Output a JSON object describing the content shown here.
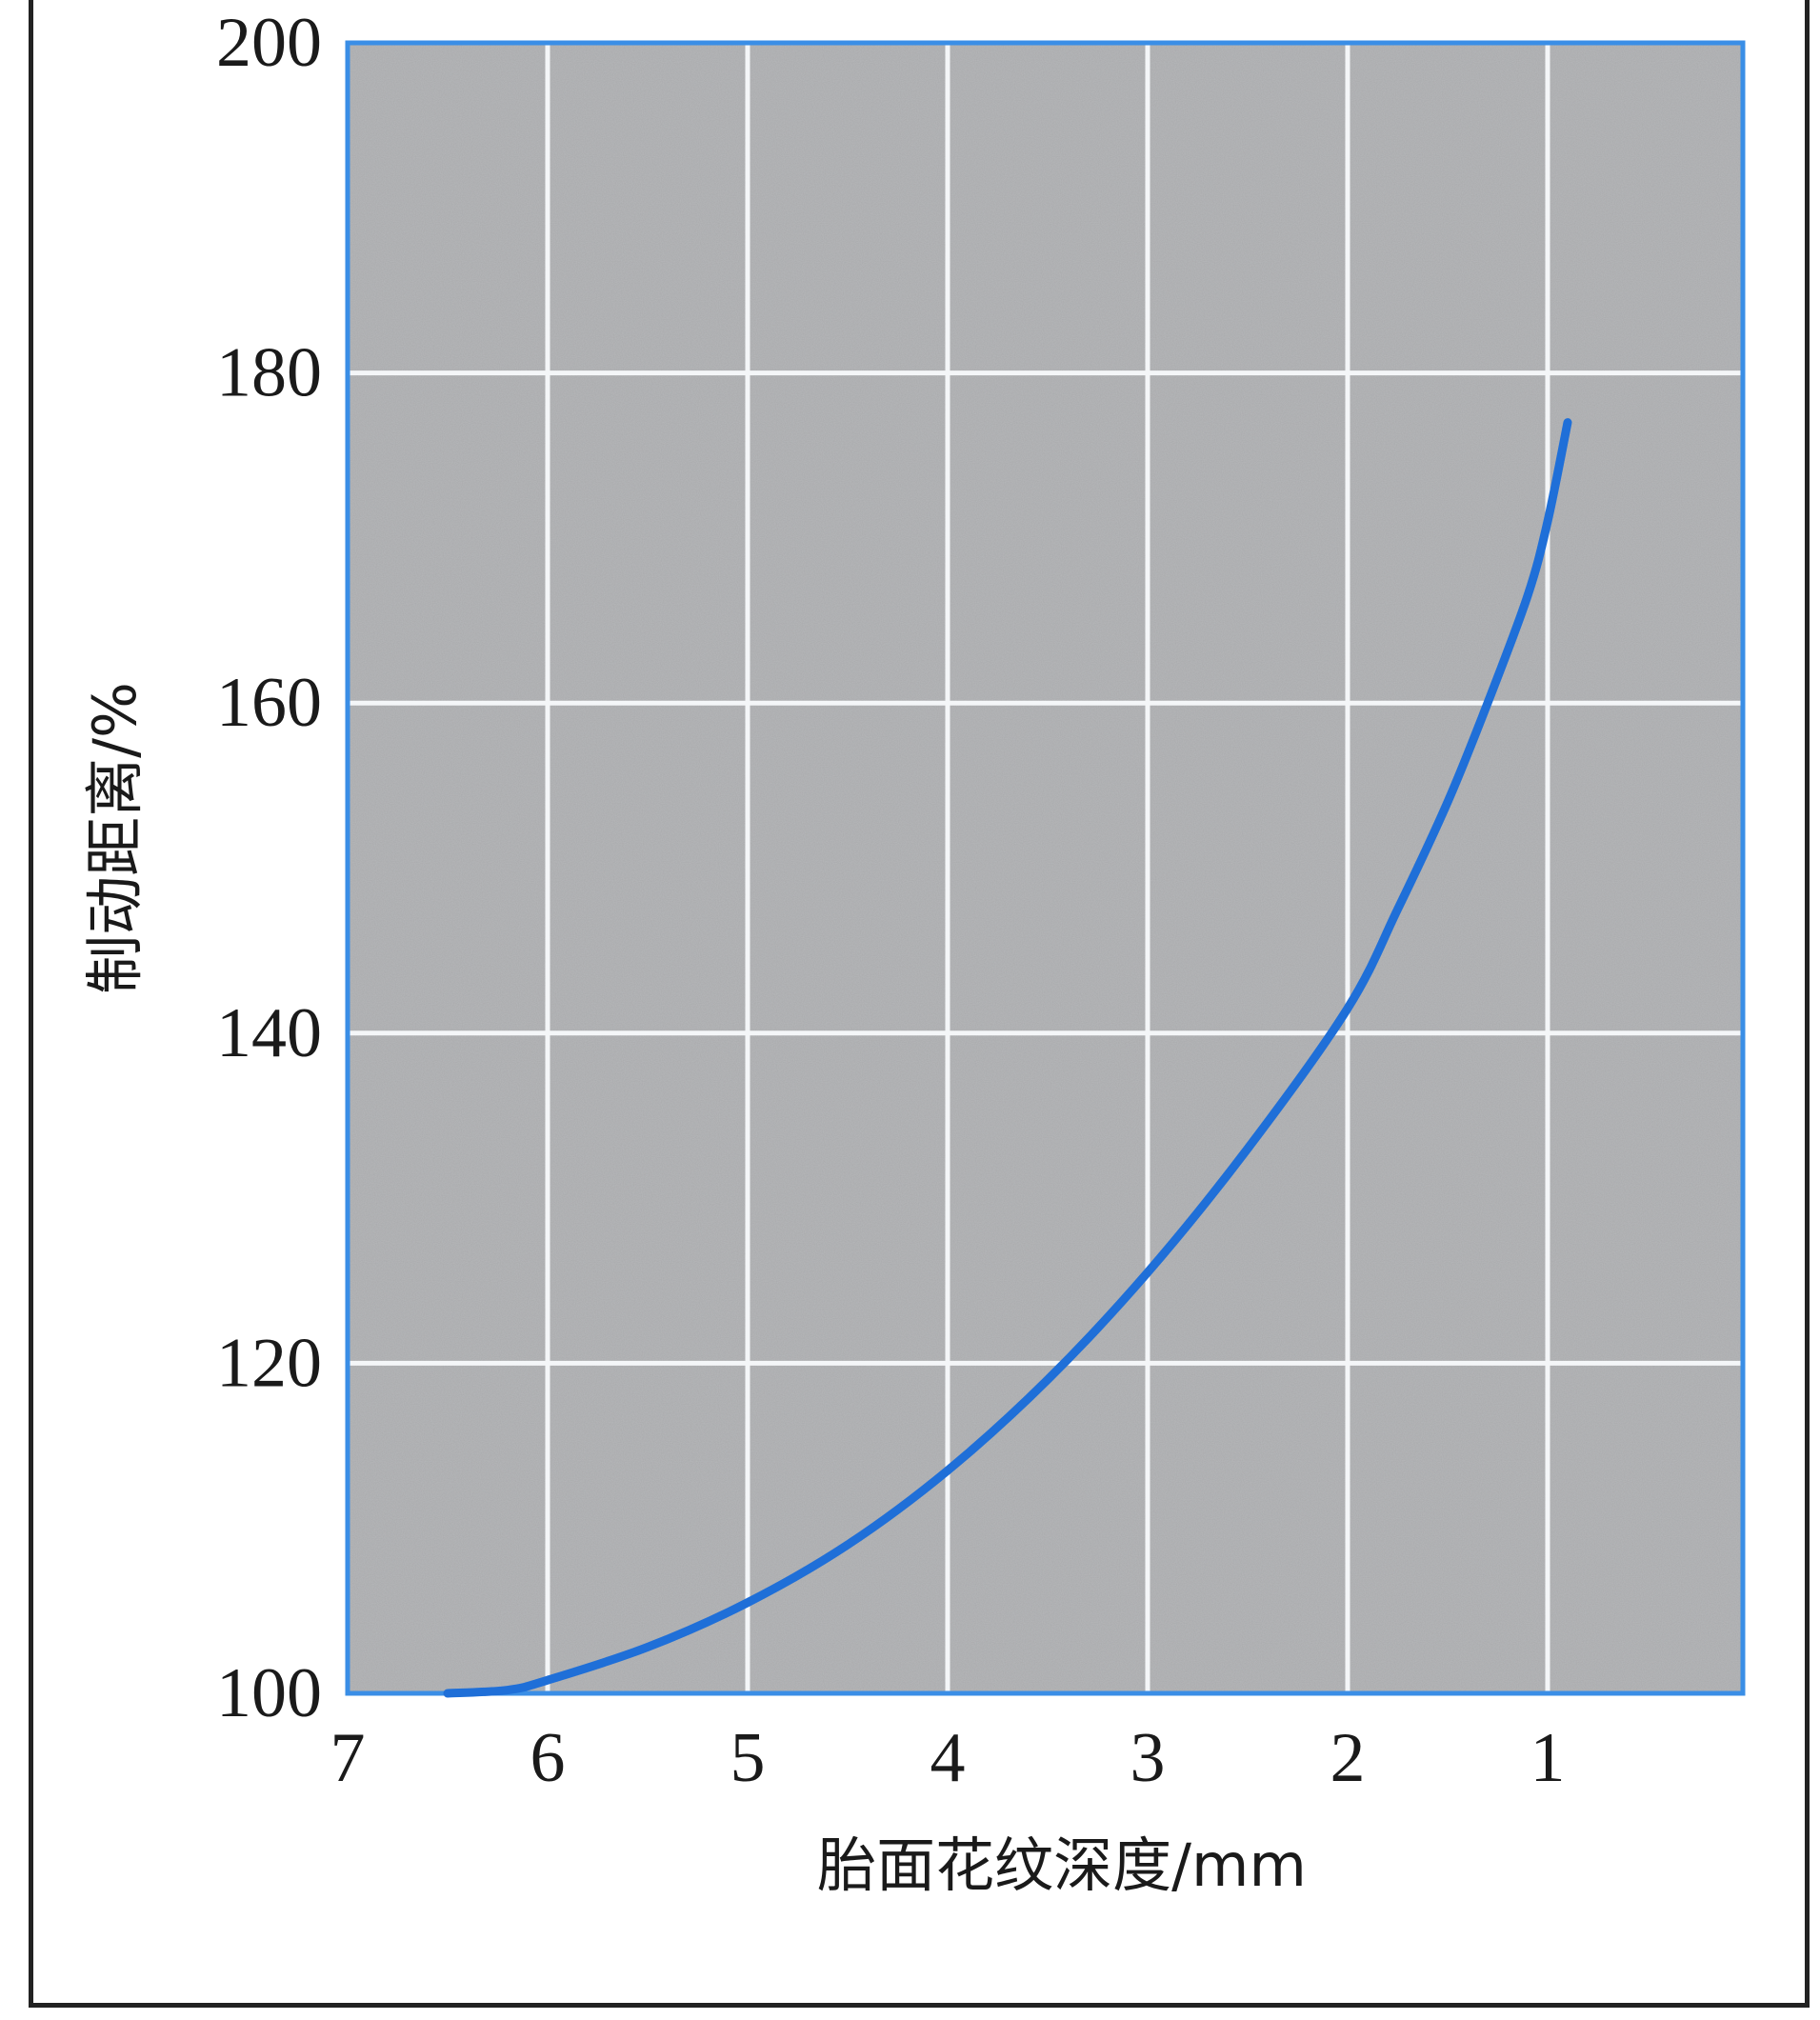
{
  "chart_data": {
    "type": "line",
    "title": "",
    "xlabel": "胎面花纹深度/mm",
    "ylabel": "制动距离/%",
    "x_ticks": [
      "7",
      "6",
      "5",
      "4",
      "3",
      "2",
      "1"
    ],
    "y_ticks": [
      "100",
      "120",
      "140",
      "160",
      "180",
      "200"
    ],
    "xlim": [
      7,
      0
    ],
    "ylim": [
      100,
      200
    ],
    "x_reversed": true,
    "grid": true,
    "legend": "none",
    "series": [
      {
        "x": [
          6.5,
          6.2,
          6.0,
          5.5,
          5.0,
          4.5,
          4.0,
          3.5,
          3.0,
          2.5,
          2.0,
          1.75,
          1.5,
          1.3,
          1.1,
          1.0,
          0.9
        ],
        "y": [
          100,
          100.2,
          100.8,
          102.8,
          105.5,
          109.0,
          113.5,
          119.0,
          125.5,
          133.0,
          141.5,
          147.5,
          154.0,
          160.0,
          166.5,
          171.0,
          177.0
        ]
      }
    ],
    "colors": {
      "line": "#1f6fd8",
      "plot_border": "#3a8ee6",
      "plot_background": "#a9aaac",
      "grid": "#f4f6f8",
      "frame": "#222222"
    }
  }
}
